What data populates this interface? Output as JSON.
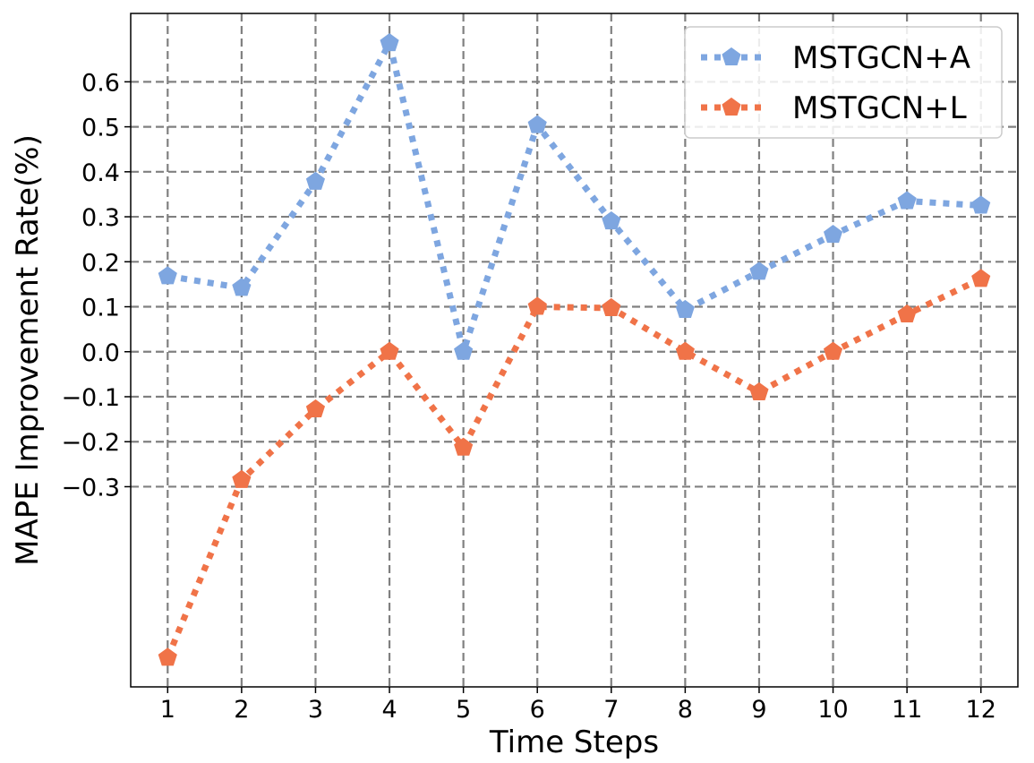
{
  "chart_data": {
    "type": "line",
    "xlabel": "Time Steps",
    "ylabel": "MAPE Improvement Rate(%)",
    "categories": [
      "1",
      "2",
      "3",
      "4",
      "5",
      "6",
      "7",
      "8",
      "9",
      "10",
      "11",
      "12"
    ],
    "x": [
      1,
      2,
      3,
      4,
      5,
      6,
      7,
      8,
      9,
      10,
      11,
      12
    ],
    "y_ticks": [
      -0.3,
      -0.2,
      -0.1,
      0.0,
      0.1,
      0.2,
      0.3,
      0.4,
      0.5,
      0.6
    ],
    "y_tick_labels": [
      "−0.3",
      "−0.2",
      "−0.1",
      "0.0",
      "0.1",
      "0.2",
      "0.3",
      "0.4",
      "0.5",
      "0.6"
    ],
    "xlim": [
      0.5,
      12.5
    ],
    "ylim": [
      -0.745,
      0.752
    ],
    "grid": true,
    "grid_style": "dashed",
    "legend_position": "top-right",
    "series": [
      {
        "name": "MSTGCN+A",
        "color": "#7EA6E0",
        "marker": "pentagon",
        "line_style": "dotted",
        "values": [
          0.168,
          0.142,
          0.378,
          0.686,
          0.0,
          0.504,
          0.29,
          0.093,
          0.178,
          0.26,
          0.335,
          0.325
        ]
      },
      {
        "name": "MSTGCN+L",
        "color": "#F07348",
        "marker": "pentagon",
        "line_style": "dotted",
        "values": [
          -0.68,
          -0.285,
          -0.128,
          0.0,
          -0.213,
          0.1,
          0.097,
          0.0,
          -0.09,
          0.0,
          0.083,
          0.162
        ]
      }
    ]
  }
}
